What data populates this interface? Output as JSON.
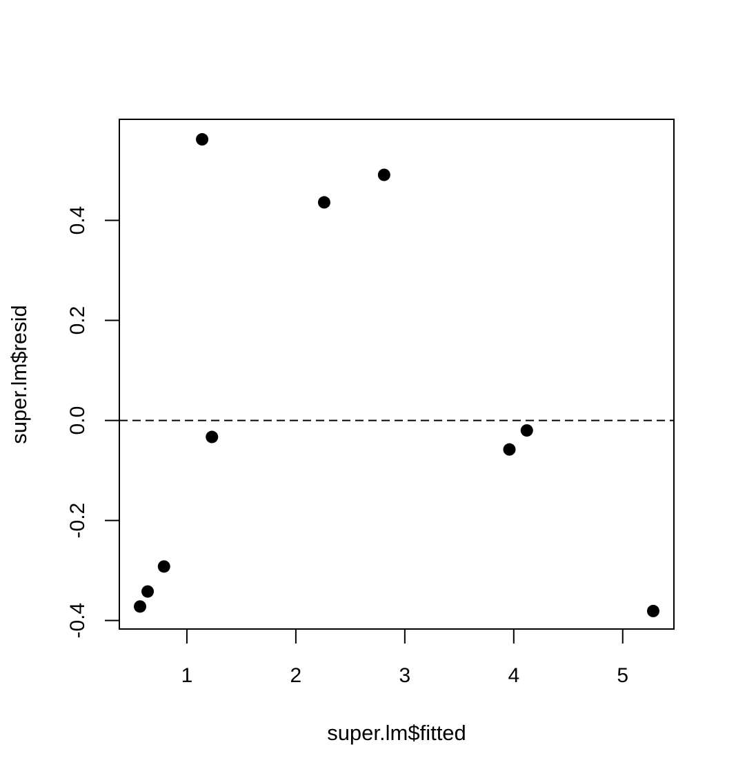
{
  "chart_data": {
    "type": "scatter",
    "title": "",
    "xlabel": "super.lm$fitted",
    "ylabel": "super.lm$resid",
    "xlim": [
      0.38,
      5.47
    ],
    "ylim": [
      -0.417,
      0.602
    ],
    "x_ticks": [
      1,
      2,
      3,
      4,
      5
    ],
    "x_tick_labels": [
      "1",
      "2",
      "3",
      "4",
      "5"
    ],
    "y_ticks": [
      -0.4,
      -0.2,
      0.0,
      0.2,
      0.4
    ],
    "y_tick_labels": [
      "-0.4",
      "-0.2",
      "0.0",
      "0.2",
      "0.4"
    ],
    "grid": false,
    "legend": "none",
    "reference_line": {
      "y": 0,
      "style": "dashed"
    },
    "marker_color": "#000000",
    "series": [
      {
        "x": [
          0.57,
          0.64,
          0.79,
          1.14,
          1.23,
          2.26,
          2.81,
          3.96,
          4.12,
          5.28
        ],
        "y": [
          -0.372,
          -0.342,
          -0.292,
          0.562,
          -0.033,
          0.436,
          0.491,
          -0.058,
          -0.02,
          -0.381
        ]
      }
    ]
  }
}
